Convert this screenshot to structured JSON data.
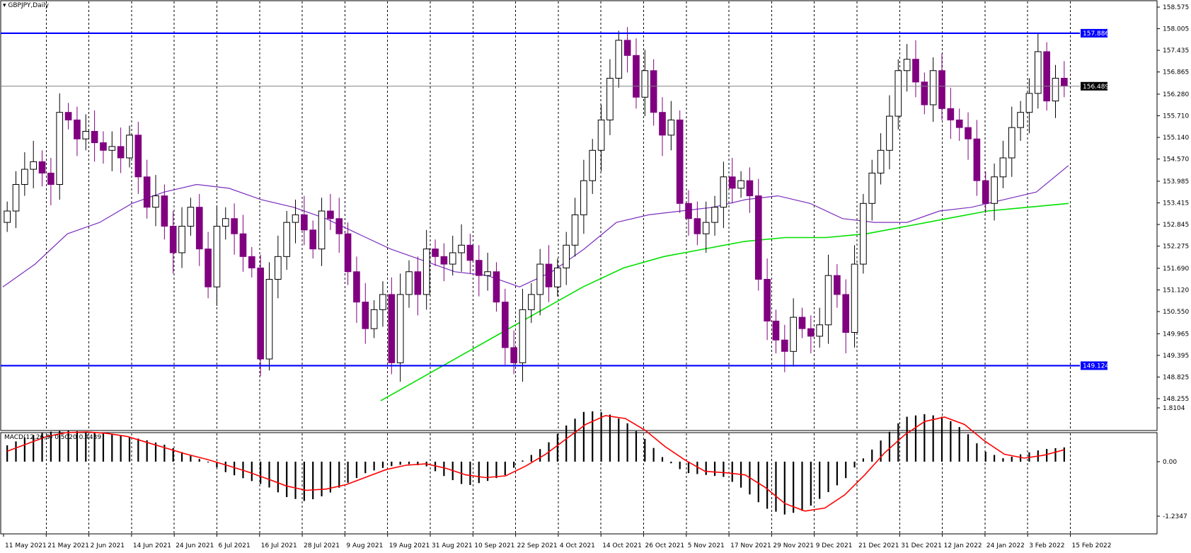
{
  "window": {
    "symbol_timeframe": "GBPJPY,Daily"
  },
  "indicator_label": "MACD(12,26,9) 0.5020 0.4439",
  "colors": {
    "bull_candle": "#ffffff",
    "bear_candle": "#800080",
    "candle_outline_bull": "#000000",
    "ma_short": "#7b2fbe",
    "ma_long": "#00e000",
    "level_line": "#0000ff",
    "level_label_bg": "#0000ff",
    "current_label_bg": "#000000",
    "macd_hist": "#000000",
    "macd_signal": "#ff0000",
    "grid": "#000000"
  },
  "chart_data": [
    {
      "type": "candlestick",
      "title": "GBPJPY,Daily",
      "ylim": [
        148.255,
        158.575
      ],
      "y_ticks": [
        "158.575",
        "158.005",
        "157.435",
        "156.865",
        "156.280",
        "155.710",
        "155.140",
        "154.570",
        "153.985",
        "153.415",
        "152.845",
        "152.275",
        "151.690",
        "151.120",
        "150.550",
        "149.965",
        "149.395",
        "148.825",
        "148.255"
      ],
      "x_ticks": [
        "11 May 2021",
        "21 May 2021",
        "2 Jun 2021",
        "14 Jun 2021",
        "24 Jun 2021",
        "6 Jul 2021",
        "16 Jul 2021",
        "28 Jul 2021",
        "9 Aug 2021",
        "19 Aug 2021",
        "31 Aug 2021",
        "10 Sep 2021",
        "22 Sep 2021",
        "4 Oct 2021",
        "14 Oct 2021",
        "26 Oct 2021",
        "5 Nov 2021",
        "17 Nov 2021",
        "29 Nov 2021",
        "9 Dec 2021",
        "21 Dec 2021",
        "31 Dec 2021",
        "12 Jan 2022",
        "24 Jan 2022",
        "3 Feb 2022",
        "15 Feb 2022"
      ],
      "levels": [
        {
          "label": "157.886",
          "value": 157.886
        },
        {
          "label": "149.124",
          "value": 149.124
        }
      ],
      "current_price": {
        "label": "156.489",
        "value": 156.489
      },
      "close_path": [
        153.2,
        153.9,
        154.3,
        154.5,
        154.2,
        153.9,
        155.8,
        155.6,
        155.1,
        155.3,
        155.0,
        154.8,
        154.9,
        154.6,
        155.2,
        154.1,
        153.3,
        153.6,
        152.8,
        152.1,
        152.8,
        153.3,
        152.2,
        151.2,
        152.8,
        153.0,
        152.6,
        152.0,
        151.7,
        149.3,
        151.4,
        152.0,
        152.9,
        153.1,
        152.7,
        152.2,
        153.2,
        153.0,
        152.6,
        151.6,
        150.8,
        150.1,
        150.6,
        151.0,
        149.2,
        151.0,
        151.6,
        151.0,
        152.2,
        152.0,
        151.8,
        152.1,
        152.3,
        151.9,
        151.5,
        151.6,
        150.8,
        149.6,
        149.2,
        150.6,
        151.0,
        151.8,
        151.2,
        151.7,
        152.3,
        153.1,
        154.0,
        154.8,
        155.6,
        156.7,
        157.7,
        157.3,
        156.2,
        156.9,
        155.8,
        155.2,
        155.6,
        153.4,
        153.0,
        152.6,
        152.9,
        153.3,
        154.1,
        153.8,
        154.0,
        153.6,
        151.4,
        150.3,
        149.8,
        149.5,
        150.4,
        150.1,
        149.9,
        150.2,
        151.5,
        151.0,
        150.0,
        151.8,
        153.4,
        154.2,
        154.8,
        155.7,
        156.9,
        157.2,
        156.6,
        156.0,
        156.9,
        155.9,
        155.6,
        155.4,
        155.1,
        154.0,
        153.4,
        154.1,
        154.6,
        155.4,
        155.8,
        156.3,
        157.4,
        156.1,
        156.7,
        156.5
      ]
    },
    {
      "type": "line",
      "title": "Moving averages",
      "series": [
        {
          "name": "",
          "values": [
            151.2,
            151.8,
            152.6,
            152.9,
            153.4,
            153.7,
            153.9,
            153.8,
            153.5,
            153.3,
            153.0,
            152.6,
            152.2,
            151.9,
            151.6,
            151.5,
            151.2,
            151.6,
            152.2,
            152.9,
            153.1,
            153.2,
            153.3,
            153.5,
            153.6,
            153.4,
            153.0,
            152.9,
            152.9,
            153.2,
            153.3,
            153.5,
            153.7,
            154.4
          ]
        },
        {
          "name": "",
          "values": [
            148.2,
            148.8,
            149.4,
            150.0,
            150.6,
            151.2,
            151.7,
            152.0,
            152.2,
            152.4,
            152.5,
            152.5,
            152.6,
            152.8,
            153.0,
            153.2,
            153.3,
            153.4
          ]
        }
      ]
    },
    {
      "type": "bar",
      "title": "MACD(12,26,9) 0.5020 0.4439",
      "ylim": [
        -1.2347,
        1.8104
      ],
      "y_ticks": [
        "1.8104",
        "0.00",
        "-1.2347"
      ],
      "macd_value": 0.502,
      "signal_value": 0.4439,
      "histogram": [
        0.55,
        0.85,
        1.0,
        1.05,
        1.0,
        0.95,
        0.85,
        0.72,
        0.55,
        0.25,
        0.0,
        -0.25,
        -0.4,
        -0.55,
        -0.8,
        -0.9,
        -0.75,
        -0.5,
        -0.25,
        -0.12,
        -0.05,
        -0.1,
        -0.35,
        -0.55,
        -0.45,
        -0.3,
        0.1,
        0.55,
        1.2,
        1.72,
        1.65,
        1.35,
        0.75,
        0.05,
        -0.25,
        -0.3,
        -0.35,
        -0.65,
        -1.05,
        -1.2,
        -1.1,
        -0.75,
        -0.4,
        0.15,
        0.85,
        1.5,
        1.6,
        1.5,
        1.05,
        0.35,
        0.1,
        0.28,
        0.42,
        0.48
      ],
      "signal": [
        0.35,
        0.6,
        0.85,
        0.98,
        1.0,
        0.95,
        0.85,
        0.65,
        0.45,
        0.25,
        0.08,
        -0.08,
        -0.22,
        -0.38,
        -0.55,
        -0.65,
        -0.62,
        -0.52,
        -0.35,
        -0.18,
        -0.08,
        -0.05,
        -0.15,
        -0.3,
        -0.36,
        -0.32,
        -0.1,
        0.25,
        0.75,
        1.25,
        1.55,
        1.45,
        1.05,
        0.5,
        0.05,
        -0.22,
        -0.25,
        -0.3,
        -0.58,
        -0.95,
        -1.12,
        -1.05,
        -0.75,
        -0.3,
        0.3,
        0.9,
        1.35,
        1.5,
        1.25,
        0.7,
        0.25,
        0.12,
        0.22,
        0.4
      ]
    }
  ]
}
